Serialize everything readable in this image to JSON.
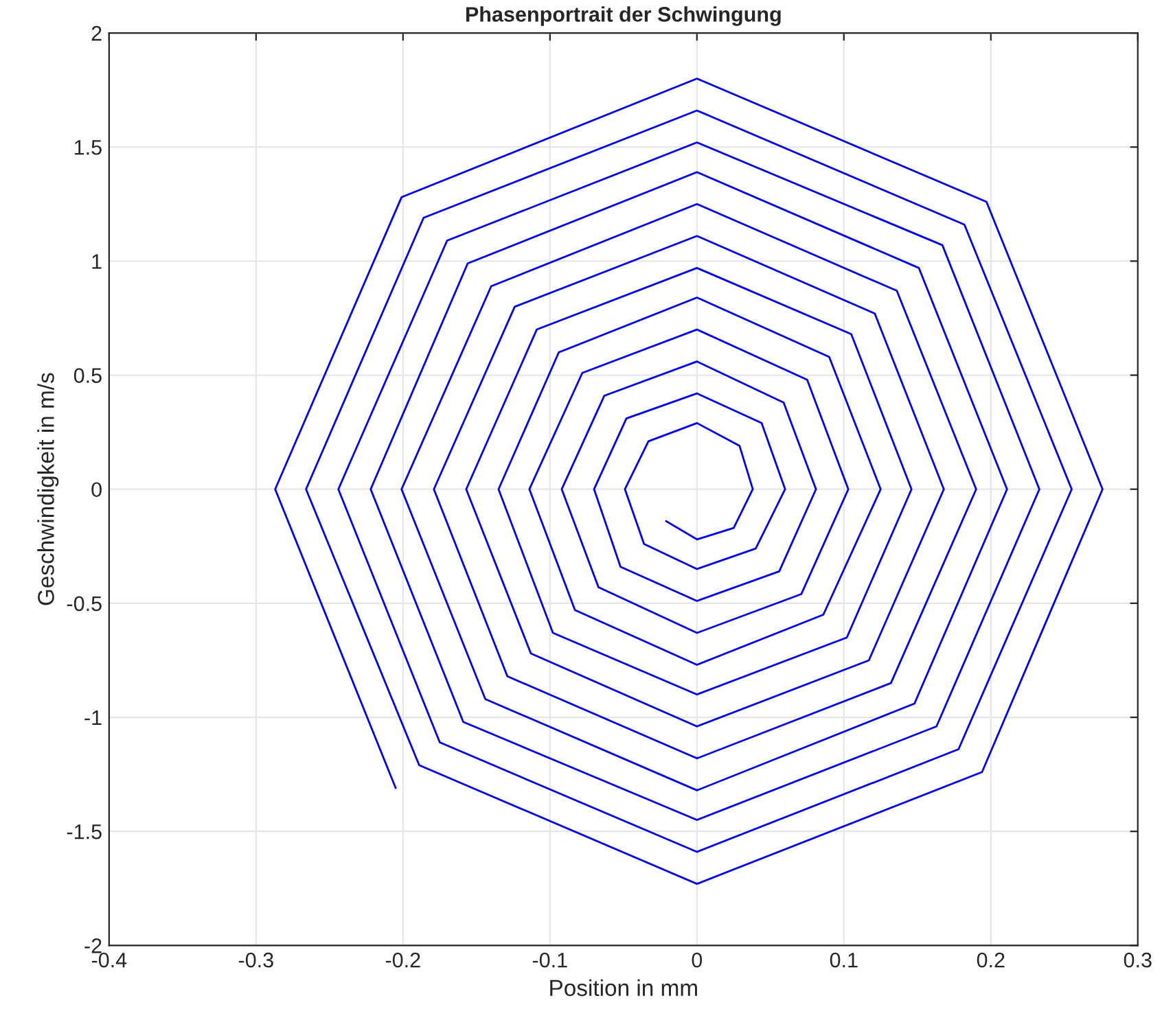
{
  "chart_data": {
    "type": "line",
    "title": "Phasenportrait der Schwingung",
    "xlabel": "Position in mm",
    "ylabel": "Geschwindigkeit in m/s",
    "x": [
      -0.205,
      -0.287,
      -0.201,
      0,
      0.197,
      0.276,
      0.194,
      0,
      -0.189,
      -0.266,
      -0.186,
      0,
      0.182,
      0.255,
      0.178,
      0,
      -0.175,
      -0.244,
      -0.17,
      0,
      0.167,
      0.233,
      0.163,
      0,
      -0.159,
      -0.222,
      -0.156,
      0,
      0.151,
      0.211,
      0.148,
      0,
      -0.144,
      -0.201,
      -0.14,
      0,
      0.136,
      0.19,
      0.132,
      0,
      -0.129,
      -0.179,
      -0.124,
      0,
      0.121,
      0.168,
      0.117,
      0,
      -0.113,
      -0.157,
      -0.109,
      0,
      0.105,
      0.146,
      0.102,
      0,
      -0.098,
      -0.135,
      -0.094,
      0,
      0.09,
      0.125,
      0.086,
      0,
      -0.083,
      -0.114,
      -0.078,
      0,
      0.075,
      0.103,
      0.071,
      0,
      -0.067,
      -0.092,
      -0.063,
      0,
      0.059,
      0.081,
      0.056,
      0,
      -0.052,
      -0.07,
      -0.048,
      0,
      0.044,
      0.06,
      0.04,
      0,
      -0.036,
      -0.049,
      -0.033,
      0,
      0.029,
      0.038,
      0.025,
      0,
      -0.021
    ],
    "series": [
      {
        "color": "#0000ff",
        "values": [
          -1.31,
          0,
          1.28,
          1.8,
          1.26,
          0,
          -1.24,
          -1.73,
          -1.21,
          0,
          1.19,
          1.66,
          1.16,
          0,
          -1.14,
          -1.59,
          -1.11,
          0,
          1.09,
          1.52,
          1.07,
          0,
          -1.04,
          -1.45,
          -1.02,
          0,
          0.99,
          1.39,
          0.97,
          0,
          -0.94,
          -1.32,
          -0.92,
          0,
          0.89,
          1.25,
          0.87,
          0,
          -0.85,
          -1.18,
          -0.82,
          0,
          0.8,
          1.11,
          0.77,
          0,
          -0.75,
          -1.04,
          -0.72,
          0,
          0.7,
          0.97,
          0.68,
          0,
          -0.65,
          -0.9,
          -0.63,
          0,
          0.6,
          0.84,
          0.58,
          0,
          -0.55,
          -0.77,
          -0.53,
          0,
          0.51,
          0.7,
          0.48,
          0,
          -0.46,
          -0.63,
          -0.43,
          0,
          0.41,
          0.56,
          0.38,
          0,
          -0.36,
          -0.49,
          -0.34,
          0,
          0.31,
          0.42,
          0.29,
          0,
          -0.26,
          -0.35,
          -0.24,
          0,
          0.21,
          0.29,
          0.19,
          0,
          -0.17,
          -0.22,
          -0.14
        ]
      }
    ],
    "xlim": [
      -0.4,
      0.3
    ],
    "xticks": [
      -0.4,
      -0.3,
      -0.2,
      -0.1,
      0,
      0.1,
      0.2,
      0.3
    ],
    "ylim": [
      -2,
      2
    ],
    "yticks": [
      -2,
      -1.5,
      -1,
      -0.5,
      0,
      0.5,
      1,
      1.5,
      2
    ],
    "grid": true,
    "marker": "none",
    "line_style": "solid"
  }
}
